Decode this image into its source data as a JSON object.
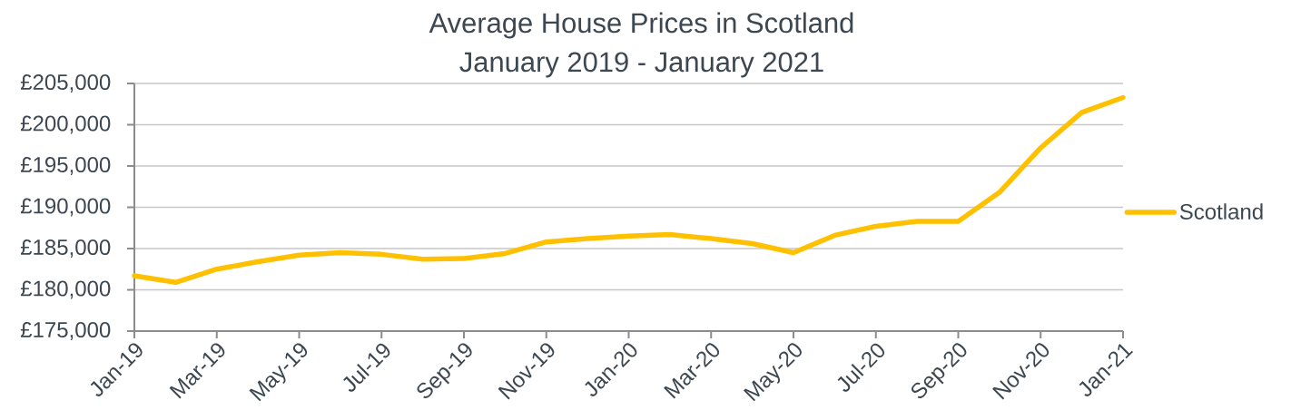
{
  "chart_data": {
    "type": "line",
    "title": "Average House Prices in Scotland",
    "subtitle": "January 2019 - January 2021",
    "categories": [
      "Jan-19",
      null,
      "Mar-19",
      null,
      "May-19",
      null,
      "Jul-19",
      null,
      "Sep-19",
      null,
      "Nov-19",
      null,
      "Jan-20",
      null,
      "Mar-20",
      null,
      "May-20",
      null,
      "Jul-20",
      null,
      "Sep-20",
      null,
      "Nov-20",
      null,
      "Jan-21"
    ],
    "series": [
      {
        "name": "Scotland",
        "color": "#ffc000",
        "values": [
          181700,
          180900,
          182500,
          183400,
          184200,
          184500,
          184300,
          183700,
          183800,
          184400,
          185800,
          186200,
          186500,
          186700,
          186200,
          185600,
          184500,
          186600,
          187700,
          188300,
          188300,
          191800,
          197200,
          201500,
          203300
        ]
      }
    ],
    "ylim": [
      175000,
      205000
    ],
    "yticks": [
      {
        "value": 175000,
        "label": "£175,000"
      },
      {
        "value": 180000,
        "label": "£180,000"
      },
      {
        "value": 185000,
        "label": "£185,000"
      },
      {
        "value": 190000,
        "label": "£190,000"
      },
      {
        "value": 195000,
        "label": "£195,000"
      },
      {
        "value": 200000,
        "label": "£200,000"
      },
      {
        "value": 205000,
        "label": "£205,000"
      }
    ],
    "grid": "y",
    "legend": "right",
    "marker": "none",
    "line_style": "solid"
  }
}
